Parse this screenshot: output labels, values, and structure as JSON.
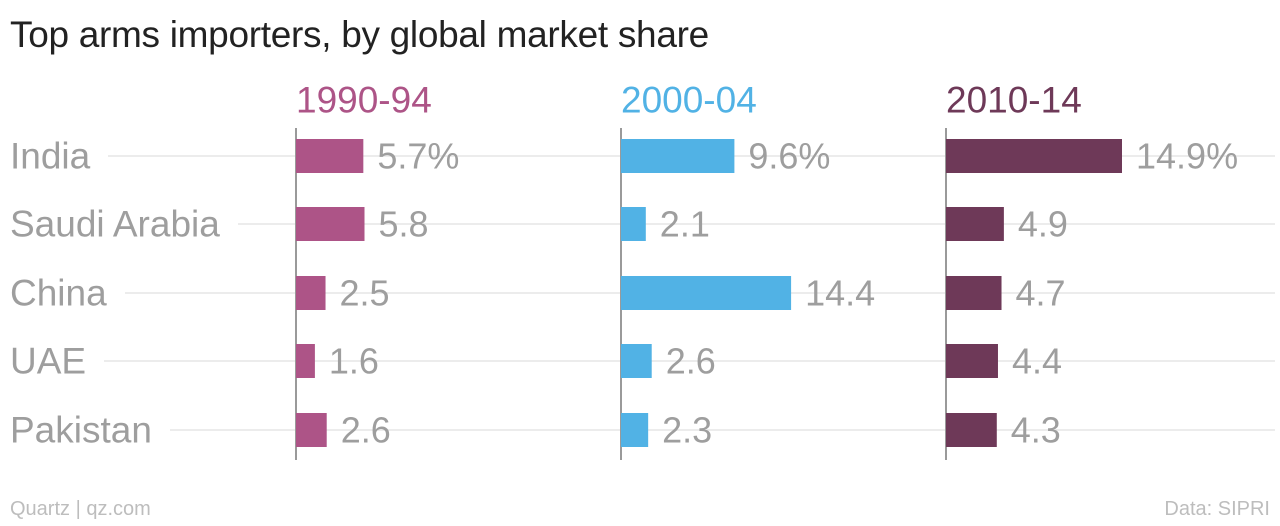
{
  "title": "Top arms importers, by global market share",
  "footer": {
    "credit": "Quartz | qz.com",
    "source": "Data: SIPRI"
  },
  "colors": {
    "panel_1": "#ad5487",
    "panel_2": "#51b2e5",
    "panel_3": "#6e3958",
    "label": "#9e9e9e",
    "gridline": "#e6e6e6",
    "axis": "#9a9a9a"
  },
  "chart_data": {
    "type": "bar",
    "orientation": "horizontal",
    "categories": [
      "India",
      "Saudi Arabia",
      "China",
      "UAE",
      "Pakistan"
    ],
    "series": [
      {
        "name": "1990-94",
        "values": [
          5.7,
          5.8,
          2.5,
          1.6,
          2.6
        ],
        "labels": [
          "5.7%",
          "5.8",
          "2.5",
          "1.6",
          "2.6"
        ]
      },
      {
        "name": "2000-04",
        "values": [
          9.6,
          2.1,
          14.4,
          2.6,
          2.3
        ],
        "labels": [
          "9.6%",
          "2.1",
          "14.4",
          "2.6",
          "2.3"
        ]
      },
      {
        "name": "2010-14",
        "values": [
          14.9,
          4.9,
          4.7,
          4.4,
          4.3
        ],
        "labels": [
          "14.9%",
          "4.9",
          "4.7",
          "4.4",
          "4.3"
        ]
      }
    ],
    "xlim": [
      0,
      14.9
    ],
    "grid": true,
    "legend": "none"
  }
}
